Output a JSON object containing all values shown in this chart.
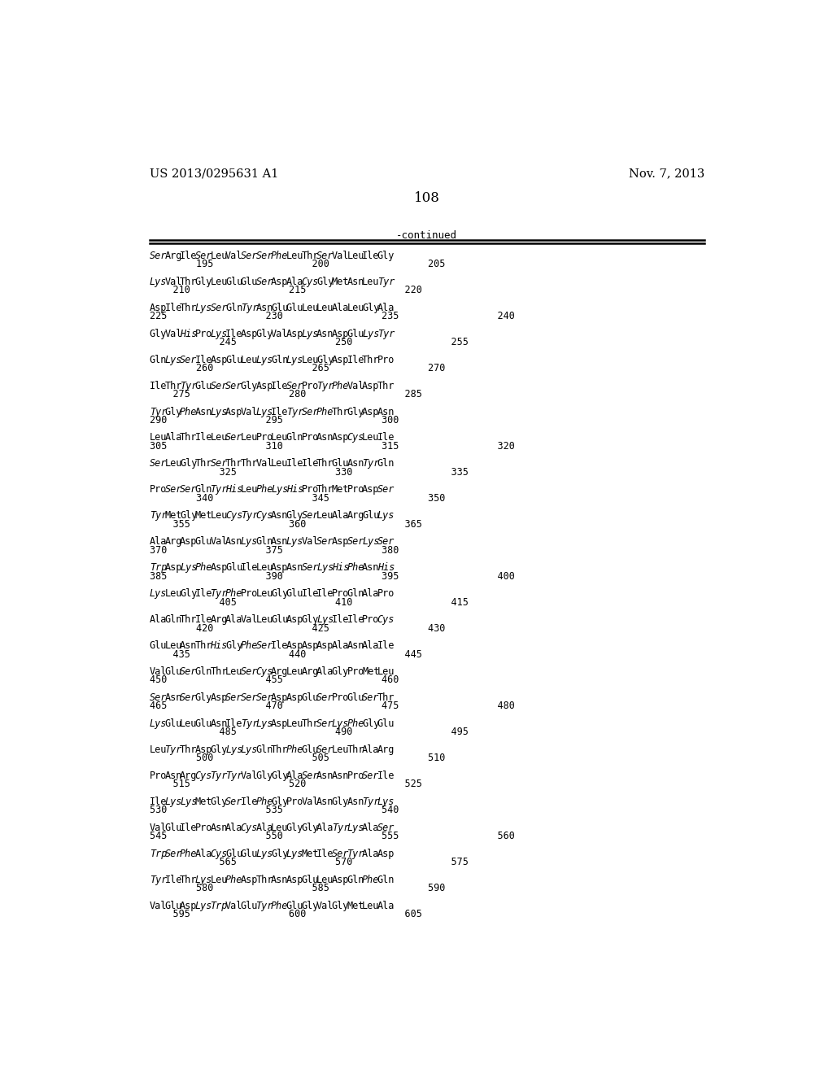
{
  "header_left": "US 2013/0295631 A1",
  "header_right": "Nov. 7, 2013",
  "page_number": "108",
  "continued_label": "-continued",
  "background_color": "#ffffff",
  "seq_lines": [
    [
      "Ser Arg Ile Ser Leu Val Ser Ser Phe Leu Thr Ser Val Leu Ile Gly",
      "        195                 200                 205"
    ],
    [
      "Lys Val Thr Gly Leu Glu Glu Ser Asp Ala Cys Gly Met Asn Leu Tyr",
      "    210                 215                 220"
    ],
    [
      "Asp Ile Thr Lys Ser Gln Tyr Asn Glu Glu Leu Leu Ala Leu Gly Ala",
      "225                 230                 235                 240"
    ],
    [
      "Gly Val His Pro Lys Ile Asp Gly Val Asp Lys Asn Asp Glu Lys Tyr",
      "            245                 250                 255"
    ],
    [
      "Gln Lys Ser Ile Asp Glu Leu Lys Gln Lys Leu Gly Asp Ile Thr Pro",
      "        260                 265                 270"
    ],
    [
      "Ile Thr Tyr Glu Ser Ser Gly Asp Ile Ser Pro Tyr Phe Val Asp Thr",
      "    275                 280                 285"
    ],
    [
      "Tyr Gly Phe Asn Lys Asp Val Lys Ile Tyr Ser Phe Thr Gly Asp Asn",
      "290                 295                 300"
    ],
    [
      "Leu Ala Thr Ile Leu Ser Leu Pro Leu Gln Pro Asn Asp Cys Leu Ile",
      "305                 310                 315                 320"
    ],
    [
      "Ser Leu Gly Thr Ser Thr Thr Val Leu Ile Ile Thr Glu Asn Tyr Gln",
      "            325                 330                 335"
    ],
    [
      "Pro Ser Ser Gln Tyr His Leu Phe Lys His Pro Thr Met Pro Asp Ser",
      "        340                 345                 350"
    ],
    [
      "Tyr Met Gly Met Leu Cys Tyr Cys Asn Gly Ser Leu Ala Arg Glu Lys",
      "    355                 360                 365"
    ],
    [
      "Ala Arg Asp Glu Val Asn Lys Gln Asn Lys Val Ser Asp Ser Lys Ser",
      "370                 375                 380"
    ],
    [
      "Trp Asp Lys Phe Asp Glu Ile Leu Asp Asn Ser Lys His Phe Asn His",
      "385                 390                 395                 400"
    ],
    [
      "Lys Leu Gly Ile Tyr Phe Pro Leu Gly Glu Ile Ile Pro Gln Ala Pro",
      "            405                 410                 415"
    ],
    [
      "Ala Gln Thr Ile Arg Ala Val Leu Glu Asp Gly Lys Ile Ile Pro Cys",
      "        420                 425                 430"
    ],
    [
      "Glu Leu Asn Thr His Gly Phe Ser Ile Asp Asp Asp Ala Asn Ala Ile",
      "    435                 440                 445"
    ],
    [
      "Val Glu Ser Gln Thr Leu Ser Cys Arg Leu Arg Ala Gly Pro Met Leu",
      "450                 455                 460"
    ],
    [
      "Ser Asn Ser Gly Asp Ser Ser Ser Asp Asp Glu Ser Pro Glu Ser Thr",
      "465                 470                 475                 480"
    ],
    [
      "Lys Glu Leu Glu Asn Ile Tyr Lys Asp Leu Thr Ser Lys Phe Gly Glu",
      "            485                 490                 495"
    ],
    [
      "Leu Tyr Thr Asp Gly Lys Lys Gln Thr Phe Glu Ser Leu Thr Ala Arg",
      "        500                 505                 510"
    ],
    [
      "Pro Asn Arg Cys Tyr Tyr Val Gly Gly Ala Ser Asn Asn Pro Ser Ile",
      "    515                 520                 525"
    ],
    [
      "Ile Lys Lys Met Gly Ser Ile Phe Gly Pro Val Asn Gly Asn Tyr Lys",
      "530                 535                 540"
    ],
    [
      "Val Glu Ile Pro Asn Ala Cys Ala Leu Gly Gly Ala Tyr Lys Ala Ser",
      "545                 550                 555                 560"
    ],
    [
      "Trp Ser Phe Ala Cys Glu Glu Lys Gly Lys Met Ile Ser Tyr Ala Asp",
      "            565                 570                 575"
    ],
    [
      "Tyr Ile Thr Lys Leu Phe Asp Thr Asn Asp Glu Leu Asp Gln Phe Gln",
      "        580                 585                 590"
    ],
    [
      "Val Glu Asp Lys Trp Val Glu Tyr Phe Glu Gly Val Gly Met Leu Ala",
      "    595                 600                 605"
    ]
  ],
  "italic_words": [
    "Cys",
    "Lys",
    "Ser",
    "Tyr",
    "Phe",
    "Trp",
    "His"
  ]
}
